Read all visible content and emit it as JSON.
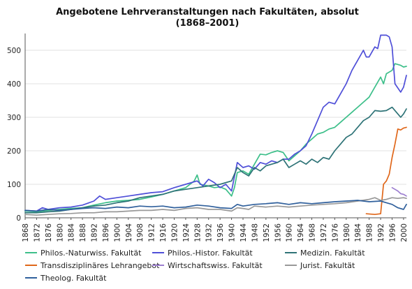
{
  "chart_data": {
    "type": "line",
    "title": "Angebotene Lehrveranstaltungen nach Fakultäten, absolut",
    "subtitle": "(1868–2001)",
    "xlabel": "",
    "ylabel": "",
    "xlim": [
      1868,
      2001
    ],
    "ylim": [
      0,
      550
    ],
    "x_ticks": [
      1868,
      1872,
      1876,
      1880,
      1884,
      1888,
      1892,
      1896,
      1900,
      1904,
      1908,
      1912,
      1916,
      1920,
      1924,
      1928,
      1932,
      1936,
      1940,
      1944,
      1948,
      1952,
      1956,
      1960,
      1964,
      1968,
      1972,
      1976,
      1980,
      1984,
      1988,
      1992,
      1996,
      2000
    ],
    "y_ticks": [
      0,
      100,
      200,
      300,
      400,
      500
    ],
    "grid": "y",
    "legend_position": "bottom",
    "series": [
      {
        "name": "Philos.-Naturwiss. Fakultät",
        "color": "#3dbf8a",
        "points": [
          [
            1868,
            20
          ],
          [
            1872,
            18
          ],
          [
            1876,
            22
          ],
          [
            1880,
            25
          ],
          [
            1884,
            28
          ],
          [
            1888,
            30
          ],
          [
            1892,
            38
          ],
          [
            1896,
            45
          ],
          [
            1900,
            50
          ],
          [
            1904,
            52
          ],
          [
            1908,
            55
          ],
          [
            1912,
            62
          ],
          [
            1916,
            70
          ],
          [
            1920,
            80
          ],
          [
            1924,
            90
          ],
          [
            1927,
            110
          ],
          [
            1928,
            128
          ],
          [
            1929,
            100
          ],
          [
            1932,
            95
          ],
          [
            1934,
            90
          ],
          [
            1936,
            92
          ],
          [
            1938,
            85
          ],
          [
            1940,
            65
          ],
          [
            1941,
            90
          ],
          [
            1942,
            135
          ],
          [
            1944,
            140
          ],
          [
            1946,
            130
          ],
          [
            1948,
            160
          ],
          [
            1950,
            190
          ],
          [
            1952,
            188
          ],
          [
            1954,
            195
          ],
          [
            1956,
            200
          ],
          [
            1958,
            195
          ],
          [
            1960,
            170
          ],
          [
            1962,
            185
          ],
          [
            1964,
            200
          ],
          [
            1966,
            220
          ],
          [
            1968,
            235
          ],
          [
            1970,
            250
          ],
          [
            1972,
            255
          ],
          [
            1974,
            265
          ],
          [
            1976,
            270
          ],
          [
            1978,
            285
          ],
          [
            1980,
            300
          ],
          [
            1982,
            315
          ],
          [
            1984,
            330
          ],
          [
            1986,
            345
          ],
          [
            1988,
            360
          ],
          [
            1990,
            390
          ],
          [
            1992,
            420
          ],
          [
            1993,
            400
          ],
          [
            1994,
            430
          ],
          [
            1996,
            440
          ],
          [
            1997,
            460
          ],
          [
            1999,
            455
          ],
          [
            2000,
            450
          ],
          [
            2001,
            452
          ]
        ]
      },
      {
        "name": "Philos.-Histor. Fakultät",
        "color": "#4f4fd8",
        "points": [
          [
            1868,
            22
          ],
          [
            1872,
            20
          ],
          [
            1874,
            30
          ],
          [
            1876,
            25
          ],
          [
            1880,
            30
          ],
          [
            1884,
            32
          ],
          [
            1888,
            38
          ],
          [
            1892,
            50
          ],
          [
            1894,
            65
          ],
          [
            1896,
            55
          ],
          [
            1900,
            60
          ],
          [
            1904,
            65
          ],
          [
            1908,
            70
          ],
          [
            1912,
            75
          ],
          [
            1916,
            78
          ],
          [
            1920,
            90
          ],
          [
            1924,
            100
          ],
          [
            1928,
            110
          ],
          [
            1930,
            95
          ],
          [
            1932,
            115
          ],
          [
            1934,
            105
          ],
          [
            1936,
            90
          ],
          [
            1938,
            100
          ],
          [
            1940,
            80
          ],
          [
            1942,
            165
          ],
          [
            1944,
            150
          ],
          [
            1946,
            155
          ],
          [
            1948,
            145
          ],
          [
            1950,
            165
          ],
          [
            1952,
            160
          ],
          [
            1954,
            170
          ],
          [
            1956,
            165
          ],
          [
            1958,
            175
          ],
          [
            1960,
            175
          ],
          [
            1962,
            190
          ],
          [
            1964,
            200
          ],
          [
            1966,
            215
          ],
          [
            1968,
            250
          ],
          [
            1970,
            290
          ],
          [
            1972,
            330
          ],
          [
            1974,
            345
          ],
          [
            1976,
            340
          ],
          [
            1978,
            370
          ],
          [
            1980,
            400
          ],
          [
            1982,
            440
          ],
          [
            1984,
            470
          ],
          [
            1986,
            500
          ],
          [
            1987,
            480
          ],
          [
            1988,
            480
          ],
          [
            1990,
            510
          ],
          [
            1991,
            505
          ],
          [
            1992,
            545
          ],
          [
            1994,
            545
          ],
          [
            1995,
            540
          ],
          [
            1996,
            510
          ],
          [
            1997,
            400
          ],
          [
            1999,
            375
          ],
          [
            2000,
            390
          ],
          [
            2001,
            425
          ]
        ]
      },
      {
        "name": "Medizin. Fakultät",
        "color": "#2e7377",
        "points": [
          [
            1868,
            15
          ],
          [
            1872,
            15
          ],
          [
            1876,
            18
          ],
          [
            1880,
            20
          ],
          [
            1884,
            25
          ],
          [
            1888,
            30
          ],
          [
            1892,
            35
          ],
          [
            1896,
            38
          ],
          [
            1900,
            45
          ],
          [
            1904,
            50
          ],
          [
            1908,
            60
          ],
          [
            1912,
            65
          ],
          [
            1916,
            70
          ],
          [
            1920,
            80
          ],
          [
            1924,
            85
          ],
          [
            1928,
            90
          ],
          [
            1932,
            95
          ],
          [
            1936,
            100
          ],
          [
            1940,
            110
          ],
          [
            1942,
            150
          ],
          [
            1944,
            135
          ],
          [
            1946,
            125
          ],
          [
            1948,
            150
          ],
          [
            1950,
            140
          ],
          [
            1952,
            155
          ],
          [
            1954,
            160
          ],
          [
            1956,
            165
          ],
          [
            1958,
            175
          ],
          [
            1960,
            150
          ],
          [
            1962,
            160
          ],
          [
            1964,
            170
          ],
          [
            1966,
            160
          ],
          [
            1968,
            175
          ],
          [
            1970,
            165
          ],
          [
            1972,
            180
          ],
          [
            1974,
            175
          ],
          [
            1976,
            200
          ],
          [
            1978,
            220
          ],
          [
            1980,
            240
          ],
          [
            1982,
            250
          ],
          [
            1984,
            270
          ],
          [
            1986,
            290
          ],
          [
            1988,
            300
          ],
          [
            1990,
            320
          ],
          [
            1992,
            318
          ],
          [
            1994,
            320
          ],
          [
            1996,
            330
          ],
          [
            1998,
            310
          ],
          [
            1999,
            300
          ],
          [
            2000,
            310
          ],
          [
            2001,
            325
          ]
        ]
      },
      {
        "name": "Transdisziplinäres Lehrangebot",
        "color": "#e0671a",
        "points": [
          [
            1987,
            12
          ],
          [
            1990,
            10
          ],
          [
            1992,
            12
          ],
          [
            1993,
            100
          ],
          [
            1994,
            110
          ],
          [
            1995,
            130
          ],
          [
            1996,
            180
          ],
          [
            1997,
            220
          ],
          [
            1998,
            265
          ],
          [
            1999,
            262
          ],
          [
            2000,
            268
          ],
          [
            2001,
            270
          ]
        ]
      },
      {
        "name": "Wirtschaftswiss. Fakultät",
        "color": "#9d7fd0",
        "points": [
          [
            1996,
            90
          ],
          [
            1997,
            85
          ],
          [
            1998,
            80
          ],
          [
            1999,
            72
          ],
          [
            2000,
            70
          ],
          [
            2001,
            65
          ]
        ]
      },
      {
        "name": "Jurist. Fakultät",
        "color": "#999999",
        "points": [
          [
            1868,
            10
          ],
          [
            1872,
            8
          ],
          [
            1876,
            10
          ],
          [
            1880,
            12
          ],
          [
            1884,
            13
          ],
          [
            1888,
            15
          ],
          [
            1892,
            15
          ],
          [
            1896,
            18
          ],
          [
            1900,
            18
          ],
          [
            1904,
            20
          ],
          [
            1908,
            22
          ],
          [
            1912,
            22
          ],
          [
            1916,
            25
          ],
          [
            1920,
            22
          ],
          [
            1924,
            28
          ],
          [
            1928,
            30
          ],
          [
            1932,
            25
          ],
          [
            1936,
            25
          ],
          [
            1940,
            20
          ],
          [
            1942,
            30
          ],
          [
            1944,
            28
          ],
          [
            1946,
            25
          ],
          [
            1948,
            35
          ],
          [
            1952,
            32
          ],
          [
            1956,
            35
          ],
          [
            1960,
            32
          ],
          [
            1964,
            35
          ],
          [
            1968,
            38
          ],
          [
            1972,
            40
          ],
          [
            1976,
            42
          ],
          [
            1980,
            45
          ],
          [
            1984,
            50
          ],
          [
            1988,
            55
          ],
          [
            1990,
            60
          ],
          [
            1992,
            52
          ],
          [
            1994,
            55
          ],
          [
            1996,
            60
          ],
          [
            1998,
            58
          ],
          [
            2000,
            60
          ],
          [
            2001,
            58
          ]
        ]
      },
      {
        "name": "Theolog. Fakultät",
        "color": "#30609c",
        "points": [
          [
            1868,
            22
          ],
          [
            1872,
            20
          ],
          [
            1876,
            25
          ],
          [
            1880,
            22
          ],
          [
            1884,
            25
          ],
          [
            1888,
            28
          ],
          [
            1892,
            30
          ],
          [
            1896,
            28
          ],
          [
            1900,
            32
          ],
          [
            1904,
            30
          ],
          [
            1908,
            35
          ],
          [
            1912,
            33
          ],
          [
            1916,
            35
          ],
          [
            1920,
            30
          ],
          [
            1924,
            32
          ],
          [
            1928,
            38
          ],
          [
            1932,
            35
          ],
          [
            1936,
            30
          ],
          [
            1940,
            28
          ],
          [
            1942,
            40
          ],
          [
            1944,
            35
          ],
          [
            1948,
            40
          ],
          [
            1952,
            42
          ],
          [
            1956,
            45
          ],
          [
            1960,
            40
          ],
          [
            1964,
            45
          ],
          [
            1968,
            42
          ],
          [
            1972,
            45
          ],
          [
            1976,
            48
          ],
          [
            1980,
            50
          ],
          [
            1984,
            52
          ],
          [
            1988,
            48
          ],
          [
            1992,
            50
          ],
          [
            1994,
            45
          ],
          [
            1996,
            40
          ],
          [
            1998,
            30
          ],
          [
            2000,
            25
          ],
          [
            2001,
            40
          ]
        ]
      }
    ]
  }
}
